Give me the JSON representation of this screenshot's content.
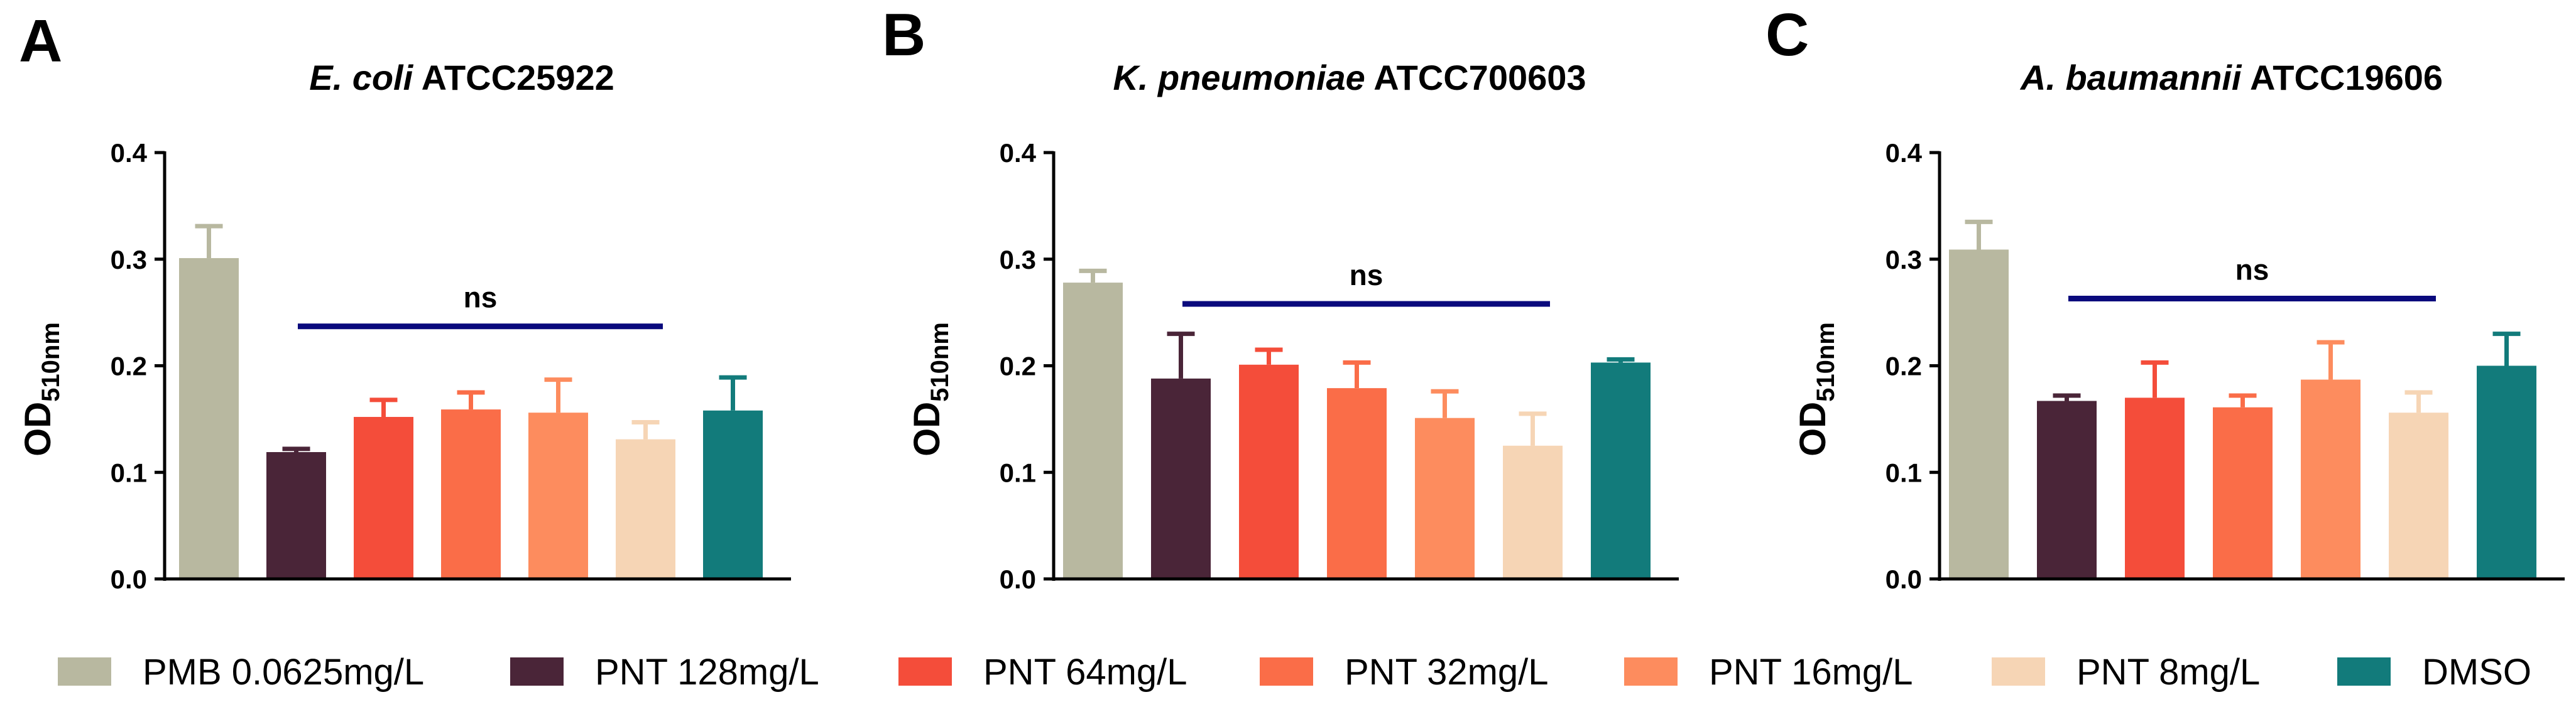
{
  "legend": {
    "items": [
      {
        "label": "PMB 0.0625mg/L",
        "color": "#b8b8a0"
      },
      {
        "label": "PNT 128mg/L",
        "color": "#4a2538"
      },
      {
        "label": "PNT 64mg/L",
        "color": "#f44d3a"
      },
      {
        "label": "PNT 32mg/L",
        "color": "#fa6d48"
      },
      {
        "label": "PNT 16mg/L",
        "color": "#fd8c5e"
      },
      {
        "label": "PNT 8mg/L",
        "color": "#f6d5b5"
      },
      {
        "label": "DMSO",
        "color": "#127b7b"
      }
    ]
  },
  "significance_color": "#0a0a7d",
  "chart_data": [
    {
      "type": "bar",
      "panel": "A",
      "title_italic": "E. coli",
      "title_rest": " ATCC25922",
      "ylabel_main": "OD",
      "ylabel_sub": "510nm",
      "ylim": [
        0,
        0.4
      ],
      "yticks": [
        "0.0",
        "0.1",
        "0.2",
        "0.3",
        "0.4"
      ],
      "categories": [
        "PMB 0.0625mg/L",
        "PNT 128mg/L",
        "PNT 64mg/L",
        "PNT 32mg/L",
        "PNT 16mg/L",
        "PNT 8mg/L",
        "DMSO"
      ],
      "values": [
        0.301,
        0.119,
        0.152,
        0.159,
        0.156,
        0.131,
        0.158
      ],
      "errors": [
        0.03,
        0.003,
        0.016,
        0.016,
        0.031,
        0.016,
        0.031
      ],
      "significance": {
        "label": "ns",
        "from": 1,
        "to": 5,
        "y": 0.237
      }
    },
    {
      "type": "bar",
      "panel": "B",
      "title_italic": "K. pneumoniae",
      "title_rest": " ATCC700603",
      "ylabel_main": "OD",
      "ylabel_sub": "510nm",
      "ylim": [
        0,
        0.4
      ],
      "yticks": [
        "0.0",
        "0.1",
        "0.2",
        "0.3",
        "0.4"
      ],
      "categories": [
        "PMB 0.0625mg/L",
        "PNT 128mg/L",
        "PNT 64mg/L",
        "PNT 32mg/L",
        "PNT 16mg/L",
        "PNT 8mg/L",
        "DMSO"
      ],
      "values": [
        0.278,
        0.188,
        0.201,
        0.179,
        0.151,
        0.125,
        0.203
      ],
      "errors": [
        0.011,
        0.042,
        0.014,
        0.024,
        0.025,
        0.03,
        0.003
      ],
      "significance": {
        "label": "ns",
        "from": 1,
        "to": 5,
        "y": 0.258
      }
    },
    {
      "type": "bar",
      "panel": "C",
      "title_italic": "A. baumannii",
      "title_rest": " ATCC19606",
      "ylabel_main": "OD",
      "ylabel_sub": "510nm",
      "ylim": [
        0,
        0.4
      ],
      "yticks": [
        "0.0",
        "0.1",
        "0.2",
        "0.3",
        "0.4"
      ],
      "categories": [
        "PMB 0.0625mg/L",
        "PNT 128mg/L",
        "PNT 64mg/L",
        "PNT 32mg/L",
        "PNT 16mg/L",
        "PNT 8mg/L",
        "DMSO"
      ],
      "values": [
        0.309,
        0.167,
        0.17,
        0.161,
        0.187,
        0.156,
        0.2
      ],
      "errors": [
        0.026,
        0.005,
        0.033,
        0.011,
        0.035,
        0.019,
        0.03
      ],
      "significance": {
        "label": "ns",
        "from": 1,
        "to": 5,
        "y": 0.263
      }
    }
  ]
}
